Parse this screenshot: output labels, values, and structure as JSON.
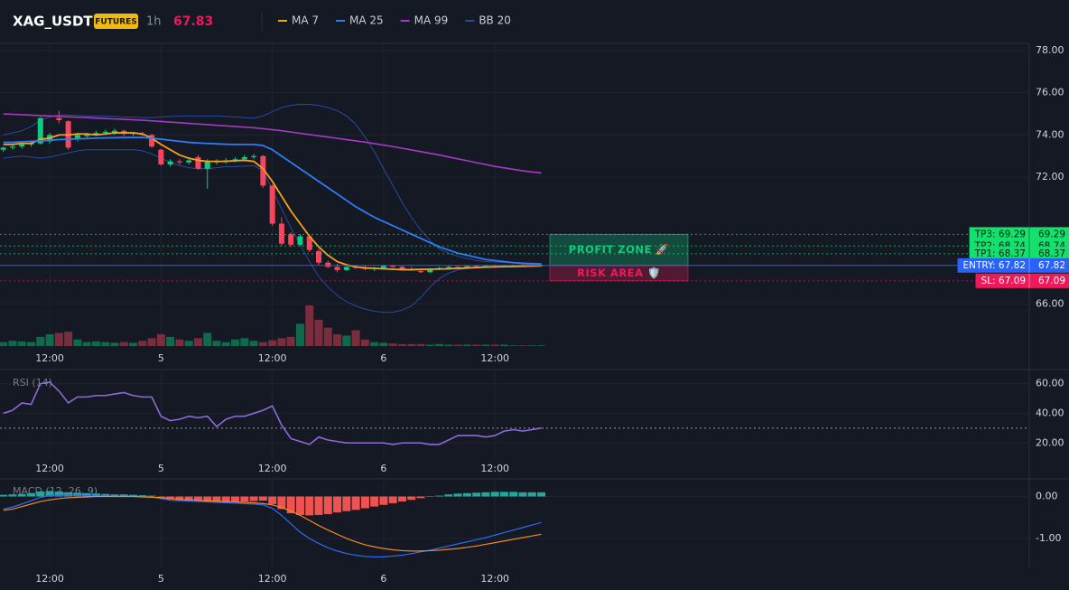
{
  "header": {
    "symbol": "XAG_USDT",
    "badge": "FUTURES",
    "interval": "1h",
    "price": 67.83
  },
  "chart_data": [
    {
      "type": "candlestick",
      "xlim": [
        -0.36,
        110.6
      ],
      "xticks": [
        {
          "value": 5,
          "label": "12:00"
        },
        {
          "value": 17,
          "label": "5"
        },
        {
          "value": 29,
          "label": "12:00"
        },
        {
          "value": 41,
          "label": "6"
        },
        {
          "value": 53,
          "label": "12:00"
        }
      ],
      "ylim": [
        64,
        78.34
      ],
      "yticks": [
        {
          "value": 66,
          "label": "66.00"
        },
        {
          "value": 72,
          "label": "72.00"
        },
        {
          "value": 74,
          "label": "74.00"
        },
        {
          "value": 76,
          "label": "76.00"
        },
        {
          "value": 78,
          "label": "78.00"
        }
      ],
      "grid": true,
      "up_color": "#0ecb81",
      "down_color": "#f6465d",
      "candles": {
        "open": [
          73.3,
          73.4,
          73.45,
          73.55,
          73.6,
          73.7,
          74.8,
          74.65,
          73.8,
          73.95,
          74.0,
          74.1,
          74.1,
          74.2,
          74.05,
          74.05,
          74.0,
          73.3,
          72.6,
          72.75,
          72.7,
          72.95,
          72.4,
          72.7,
          72.75,
          72.8,
          72.85,
          72.95,
          73.0,
          71.6,
          69.8,
          69.3,
          68.8,
          69.2,
          68.5,
          67.95,
          67.75,
          67.6,
          67.75,
          67.7,
          67.65,
          67.7,
          67.8,
          67.75,
          67.65,
          67.55,
          67.5,
          67.65,
          67.7,
          67.75,
          67.72,
          67.78,
          67.76,
          67.8,
          67.78,
          67.8,
          67.82,
          67.8,
          67.81
        ],
        "high": [
          73.45,
          73.55,
          73.6,
          73.7,
          74.85,
          74.1,
          75.15,
          74.7,
          74.1,
          74.1,
          74.2,
          74.25,
          74.3,
          74.25,
          74.15,
          74.15,
          74.05,
          73.35,
          72.85,
          72.85,
          72.9,
          73.05,
          72.85,
          72.85,
          72.9,
          72.95,
          73.05,
          73.1,
          73.05,
          71.65,
          70.1,
          69.4,
          69.3,
          69.3,
          68.6,
          68.05,
          67.9,
          67.8,
          67.8,
          67.8,
          67.75,
          67.85,
          67.85,
          67.8,
          67.75,
          67.65,
          67.7,
          67.75,
          67.8,
          67.8,
          67.82,
          67.85,
          67.84,
          67.86,
          67.85,
          67.86,
          67.88,
          67.86,
          67.86
        ],
        "low": [
          73.2,
          73.3,
          73.35,
          73.45,
          73.55,
          73.6,
          74.55,
          73.3,
          73.7,
          73.85,
          73.95,
          74.0,
          74.0,
          73.95,
          73.95,
          73.95,
          73.4,
          72.55,
          72.5,
          72.6,
          72.6,
          72.35,
          71.45,
          72.6,
          72.65,
          72.7,
          72.75,
          72.85,
          71.5,
          69.7,
          68.75,
          68.7,
          68.75,
          68.45,
          67.85,
          67.7,
          67.5,
          67.55,
          67.65,
          67.6,
          67.55,
          67.65,
          67.7,
          67.6,
          67.55,
          67.45,
          67.45,
          67.6,
          67.65,
          67.7,
          67.68,
          67.72,
          67.7,
          67.74,
          67.72,
          67.76,
          67.77,
          67.76,
          67.78
        ],
        "close": [
          73.4,
          73.45,
          73.55,
          73.6,
          74.8,
          74.0,
          74.7,
          73.4,
          74.0,
          74.05,
          74.1,
          74.15,
          74.2,
          74.05,
          74.1,
          74.0,
          73.45,
          72.6,
          72.75,
          72.7,
          72.8,
          72.4,
          72.75,
          72.75,
          72.8,
          72.85,
          72.95,
          73.0,
          71.6,
          69.8,
          68.85,
          68.8,
          69.2,
          68.55,
          67.95,
          67.75,
          67.6,
          67.75,
          67.7,
          67.65,
          67.7,
          67.8,
          67.75,
          67.65,
          67.6,
          67.5,
          67.65,
          67.7,
          67.75,
          67.72,
          67.78,
          67.76,
          67.8,
          67.78,
          67.8,
          67.82,
          67.8,
          67.81,
          67.83
        ]
      },
      "volume": [
        6,
        8,
        7,
        6,
        14,
        18,
        20,
        22,
        10,
        6,
        7,
        6,
        5,
        6,
        5,
        8,
        12,
        18,
        14,
        10,
        8,
        12,
        20,
        8,
        6,
        10,
        12,
        8,
        6,
        9,
        12,
        14,
        34,
        62,
        40,
        28,
        18,
        16,
        24,
        10,
        6,
        5,
        4,
        3,
        3,
        3,
        2,
        3,
        2,
        2,
        2,
        2,
        2,
        2,
        2,
        1,
        1,
        1,
        1
      ],
      "series": [
        {
          "name": "MA 7",
          "color": "#f7a21b",
          "values": [
            73.55,
            73.55,
            73.6,
            73.6,
            73.8,
            73.85,
            74.0,
            74.0,
            74.05,
            74.05,
            74.0,
            74.05,
            74.1,
            74.1,
            74.1,
            74.05,
            73.85,
            73.55,
            73.3,
            73.05,
            72.9,
            72.8,
            72.75,
            72.75,
            72.75,
            72.78,
            72.8,
            72.75,
            72.4,
            71.8,
            71.1,
            70.4,
            69.8,
            69.2,
            68.7,
            68.3,
            68.0,
            67.85,
            67.75,
            67.7,
            67.68,
            67.66,
            67.64,
            67.62,
            67.62,
            67.63,
            67.64,
            67.65,
            67.66,
            67.68,
            67.7,
            67.72,
            67.74,
            67.75,
            67.76,
            67.77,
            67.78,
            67.79,
            67.8
          ]
        },
        {
          "name": "MA 25",
          "color": "#2f7bf5",
          "values": [
            73.65,
            73.65,
            73.68,
            73.7,
            73.72,
            73.75,
            73.78,
            73.8,
            73.82,
            73.83,
            73.85,
            73.86,
            73.87,
            73.88,
            73.88,
            73.88,
            73.85,
            73.8,
            73.75,
            73.7,
            73.65,
            73.62,
            73.6,
            73.58,
            73.56,
            73.55,
            73.55,
            73.55,
            73.5,
            73.3,
            73.0,
            72.7,
            72.4,
            72.1,
            71.8,
            71.5,
            71.2,
            70.9,
            70.6,
            70.35,
            70.1,
            69.9,
            69.7,
            69.5,
            69.3,
            69.1,
            68.9,
            68.7,
            68.55,
            68.4,
            68.3,
            68.2,
            68.1,
            68.05,
            68.0,
            67.95,
            67.92,
            67.9,
            67.88
          ]
        },
        {
          "name": "MA 99",
          "color": "#a63bc2",
          "values": [
            75.0,
            74.98,
            74.96,
            74.94,
            74.92,
            74.9,
            74.88,
            74.86,
            74.84,
            74.82,
            74.8,
            74.78,
            74.76,
            74.74,
            74.72,
            74.7,
            74.67,
            74.64,
            74.61,
            74.58,
            74.55,
            74.52,
            74.49,
            74.46,
            74.43,
            74.4,
            74.37,
            74.34,
            74.3,
            74.25,
            74.2,
            74.14,
            74.08,
            74.02,
            73.96,
            73.9,
            73.84,
            73.78,
            73.72,
            73.66,
            73.59,
            73.52,
            73.45,
            73.37,
            73.29,
            73.21,
            73.13,
            73.05,
            72.96,
            72.87,
            72.78,
            72.69,
            72.6,
            72.51,
            72.44,
            72.37,
            72.3,
            72.25,
            72.2
          ]
        },
        {
          "name": "BB 20",
          "color": "#2a4a9e",
          "upper": [
            74.0,
            74.1,
            74.2,
            74.4,
            74.7,
            74.85,
            74.95,
            74.95,
            74.92,
            74.9,
            74.9,
            74.9,
            74.88,
            74.85,
            74.85,
            74.82,
            74.82,
            74.85,
            74.88,
            74.9,
            74.9,
            74.9,
            74.9,
            74.9,
            74.88,
            74.85,
            74.82,
            74.8,
            74.9,
            75.1,
            75.3,
            75.4,
            75.45,
            75.45,
            75.4,
            75.3,
            75.15,
            74.9,
            74.5,
            73.9,
            73.2,
            72.4,
            71.6,
            70.8,
            70.1,
            69.5,
            69.0,
            68.6,
            68.4,
            68.25,
            68.15,
            68.05,
            68.0,
            67.98,
            67.96,
            67.95,
            67.94,
            67.93,
            67.92
          ],
          "lower": [
            72.9,
            72.95,
            73.0,
            72.95,
            72.9,
            72.95,
            73.05,
            73.15,
            73.25,
            73.3,
            73.3,
            73.3,
            73.3,
            73.3,
            73.3,
            73.25,
            73.1,
            72.9,
            72.7,
            72.55,
            72.45,
            72.4,
            72.4,
            72.45,
            72.5,
            72.5,
            72.52,
            72.55,
            72.3,
            71.4,
            70.5,
            69.6,
            68.8,
            68.0,
            67.3,
            66.8,
            66.4,
            66.1,
            65.9,
            65.75,
            65.65,
            65.6,
            65.6,
            65.7,
            65.9,
            66.3,
            66.8,
            67.2,
            67.45,
            67.6,
            67.68,
            67.72,
            67.75,
            67.78,
            67.8,
            67.82,
            67.84,
            67.86,
            67.88
          ]
        }
      ],
      "levels": [
        {
          "label": "TP3: 69.29",
          "value": 69.29,
          "color": "#14e06e",
          "text_color": "#0b1a10",
          "style": "dotted"
        },
        {
          "label": "TP2: 68.74",
          "value": 68.74,
          "color": "#14e06e",
          "text_color": "#0b1a10",
          "style": "dotted"
        },
        {
          "label": "TP1: 68.37",
          "value": 68.37,
          "color": "#14e06e",
          "text_color": "#0b1a10",
          "style": "dotted"
        },
        {
          "label": "ENTRY: 67.82",
          "value": 67.82,
          "color": "#2962ff",
          "text_color": "#ffffff",
          "style": "solid"
        },
        {
          "label": "SL: 67.09",
          "value": 67.09,
          "color": "#f0185a",
          "text_color": "#ffffff",
          "style": "dotted"
        }
      ],
      "annotations": [
        {
          "text": "PROFIT ZONE 🚀",
          "color": "#0ecb81"
        },
        {
          "text": "RISK AREA 🛡️",
          "color": "#f0185a"
        }
      ]
    },
    {
      "type": "line",
      "title": "RSI (14)",
      "xlim": [
        -0.36,
        110.6
      ],
      "xticks": [
        {
          "value": 5,
          "label": "12:00"
        },
        {
          "value": 17,
          "label": "5"
        },
        {
          "value": 29,
          "label": "12:00"
        },
        {
          "value": 41,
          "label": "6"
        },
        {
          "value": 53,
          "label": "12:00"
        }
      ],
      "ylim": [
        9.8,
        68.9
      ],
      "yticks": [
        {
          "value": 20,
          "label": "20.00"
        },
        {
          "value": 40,
          "label": "40.00"
        },
        {
          "value": 60,
          "label": "60.00"
        }
      ],
      "hline": 30,
      "grid": true,
      "series": [
        {
          "color": "#8c6ad8",
          "values": [
            40,
            42,
            47,
            46,
            60,
            61,
            55,
            47,
            51,
            51,
            52,
            52,
            53,
            54,
            52,
            51,
            51,
            38,
            35,
            36,
            38,
            37,
            38,
            31,
            36,
            38,
            38,
            40,
            42,
            45,
            32,
            23,
            21,
            19,
            24,
            22,
            21,
            20,
            20,
            20,
            20,
            20,
            19,
            20,
            20,
            20,
            19,
            19,
            22,
            25,
            25,
            25,
            24,
            25,
            28,
            29,
            28,
            29,
            30
          ]
        }
      ]
    },
    {
      "type": "macd",
      "title": "MACD (12, 26, 9)",
      "xlim": [
        -0.36,
        110.6
      ],
      "xticks": [
        {
          "value": 5,
          "label": "12:00"
        },
        {
          "value": 17,
          "label": "5"
        },
        {
          "value": 29,
          "label": "12:00"
        },
        {
          "value": 41,
          "label": "6"
        },
        {
          "value": 53,
          "label": "12:00"
        }
      ],
      "ylim": [
        -1.69,
        0.42
      ],
      "yticks": [
        {
          "value": 0,
          "label": "0.00"
        },
        {
          "value": -1,
          "label": "-1.00"
        }
      ],
      "grid": true,
      "hist_up_color": "#26a69a",
      "hist_down_color": "#ef5350",
      "histogram": [
        0.04,
        0.05,
        0.06,
        0.08,
        0.12,
        0.13,
        0.12,
        0.1,
        0.09,
        0.08,
        0.07,
        0.06,
        0.05,
        0.05,
        0.04,
        0.03,
        0.02,
        -0.03,
        -0.07,
        -0.09,
        -0.1,
        -0.12,
        -0.13,
        -0.13,
        -0.14,
        -0.13,
        -0.12,
        -0.11,
        -0.1,
        -0.18,
        -0.3,
        -0.4,
        -0.44,
        -0.45,
        -0.44,
        -0.42,
        -0.38,
        -0.35,
        -0.32,
        -0.28,
        -0.24,
        -0.2,
        -0.16,
        -0.12,
        -0.08,
        -0.04,
        -0.01,
        0.02,
        0.05,
        0.07,
        0.08,
        0.09,
        0.1,
        0.11,
        0.11,
        0.11,
        0.1,
        0.1,
        0.1
      ],
      "series": [
        {
          "color": "#2f6bf0",
          "values": [
            -0.3,
            -0.25,
            -0.18,
            -0.1,
            -0.02,
            0.02,
            0.03,
            0.03,
            0.03,
            0.02,
            0.02,
            0.01,
            0.01,
            0.01,
            0.0,
            0.0,
            -0.01,
            -0.05,
            -0.09,
            -0.1,
            -0.11,
            -0.12,
            -0.13,
            -0.14,
            -0.15,
            -0.16,
            -0.17,
            -0.18,
            -0.2,
            -0.28,
            -0.45,
            -0.65,
            -0.85,
            -1.0,
            -1.12,
            -1.22,
            -1.3,
            -1.36,
            -1.4,
            -1.43,
            -1.44,
            -1.44,
            -1.42,
            -1.4,
            -1.36,
            -1.32,
            -1.28,
            -1.23,
            -1.18,
            -1.13,
            -1.08,
            -1.03,
            -0.98,
            -0.92,
            -0.86,
            -0.8,
            -0.74,
            -0.68,
            -0.62
          ]
        },
        {
          "color": "#f08a24",
          "values": [
            -0.33,
            -0.3,
            -0.24,
            -0.18,
            -0.12,
            -0.08,
            -0.05,
            -0.03,
            -0.02,
            -0.01,
            0.0,
            0.0,
            0.0,
            0.0,
            0.0,
            -0.01,
            -0.02,
            -0.03,
            -0.05,
            -0.07,
            -0.08,
            -0.09,
            -0.1,
            -0.11,
            -0.12,
            -0.13,
            -0.14,
            -0.15,
            -0.17,
            -0.2,
            -0.26,
            -0.35,
            -0.45,
            -0.57,
            -0.69,
            -0.8,
            -0.9,
            -1.0,
            -1.08,
            -1.15,
            -1.2,
            -1.24,
            -1.27,
            -1.29,
            -1.3,
            -1.3,
            -1.29,
            -1.28,
            -1.26,
            -1.24,
            -1.21,
            -1.18,
            -1.14,
            -1.1,
            -1.06,
            -1.02,
            -0.98,
            -0.94,
            -0.9
          ]
        }
      ]
    }
  ]
}
